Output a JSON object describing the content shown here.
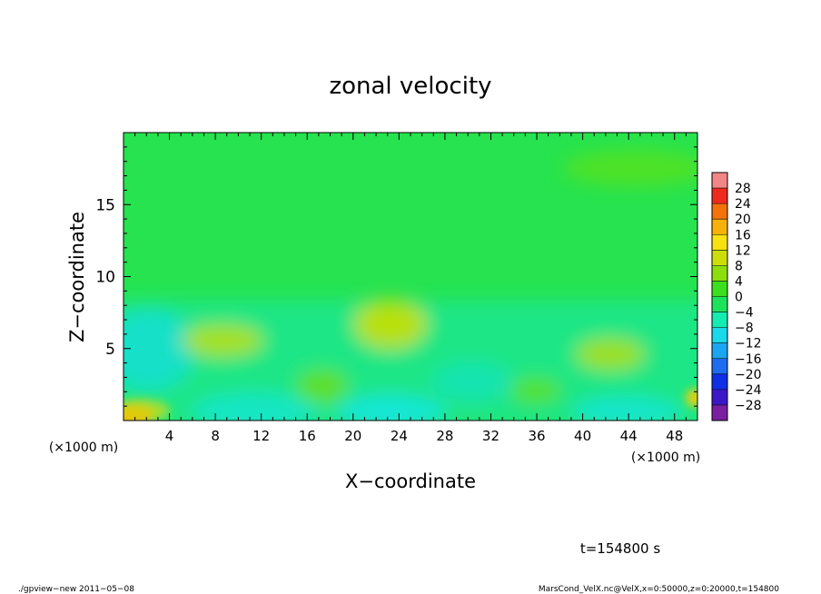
{
  "chart_data": {
    "type": "heatmap",
    "title": "zonal velocity",
    "xlabel": "X−coordinate",
    "ylabel": "Z−coordinate",
    "x_unit_left": "(×1000 m)",
    "x_unit_right": "(×1000 m)",
    "xlim": [
      0,
      50
    ],
    "ylim": [
      0,
      20
    ],
    "xticks": [
      4,
      8,
      12,
      16,
      20,
      24,
      28,
      32,
      36,
      40,
      44,
      48
    ],
    "xtick_labels": [
      "4",
      "8",
      "12",
      "16",
      "20",
      "24",
      "28",
      "32",
      "36",
      "40",
      "44",
      "48"
    ],
    "yticks": [
      5,
      10,
      15
    ],
    "ytick_labels": [
      "5",
      "10",
      "15"
    ],
    "time_label": "t=154800 s",
    "colorbar": {
      "levels": [
        -28,
        -24,
        -20,
        -16,
        -12,
        -8,
        -4,
        0,
        4,
        8,
        12,
        16,
        20,
        24,
        28
      ],
      "labels": [
        "−28",
        "−24",
        "−20",
        "−16",
        "−12",
        "−8",
        "−4",
        "0",
        "4",
        "8",
        "12",
        "16",
        "20",
        "24",
        "28"
      ],
      "colors": [
        "#7a1fa0",
        "#3c17c8",
        "#1030e6",
        "#1e6cf0",
        "#1aa6f2",
        "#19d9ea",
        "#14ecb2",
        "#1de35c",
        "#3bdf1e",
        "#8cdf0c",
        "#ccde0a",
        "#f6e20e",
        "#f6b20a",
        "#f3720a",
        "#ee2a1e",
        "#f28686"
      ]
    },
    "grid": false,
    "legend_position": "right"
  },
  "footer": {
    "left": "./gpview−new   2011−05−08",
    "right": "MarsCond_VelX.nc@VelX,x=0:50000,z=0:20000,t=154800"
  }
}
